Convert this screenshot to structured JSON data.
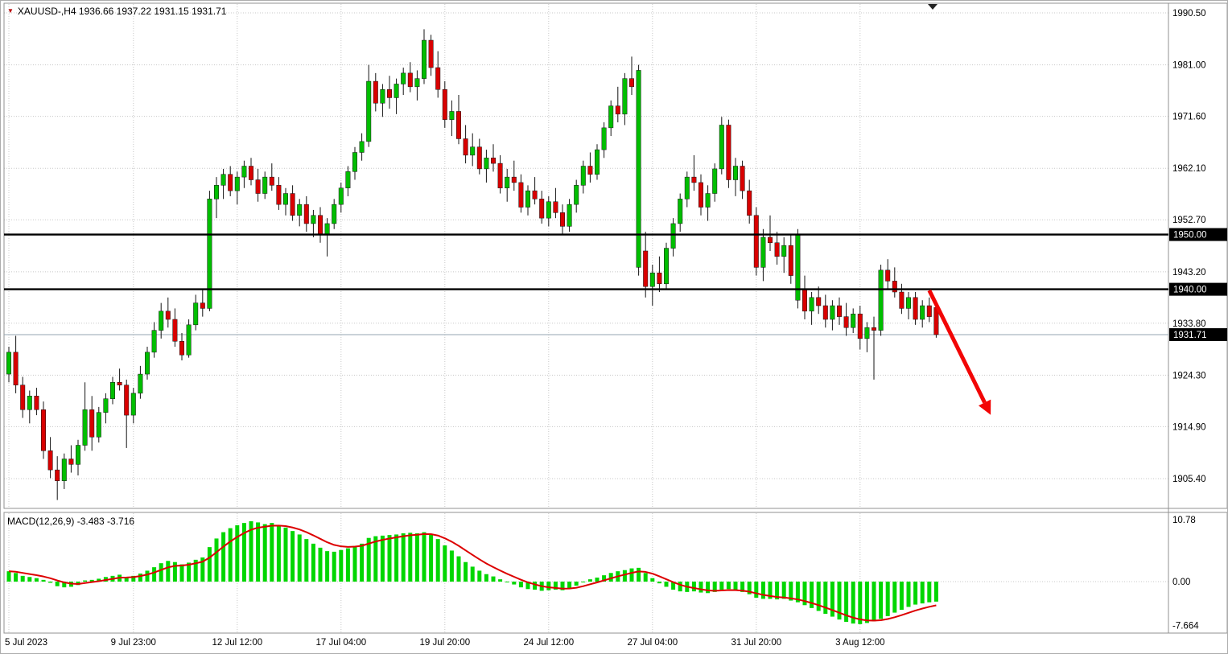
{
  "header": {
    "title": "XAUUSD-,H4 1936.66 1937.22 1931.15 1931.71",
    "marker_icon": "▼"
  },
  "chart_data": {
    "type": "candlestick",
    "symbol": "XAUUSD-",
    "timeframe": "H4",
    "last_ohlc": {
      "open": 1936.66,
      "high": 1937.22,
      "low": 1931.15,
      "close": 1931.71
    },
    "price_axis": {
      "ticks": [
        {
          "value": 1990.5,
          "label": "1990.50"
        },
        {
          "value": 1981.0,
          "label": "1981.00"
        },
        {
          "value": 1971.6,
          "label": "1971.60"
        },
        {
          "value": 1962.1,
          "label": "1962.10"
        },
        {
          "value": 1952.7,
          "label": "1952.70"
        },
        {
          "value": 1943.2,
          "label": "1943.20"
        },
        {
          "value": 1933.8,
          "label": "1933.80"
        },
        {
          "value": 1924.3,
          "label": "1924.30"
        },
        {
          "value": 1914.9,
          "label": "1914.90"
        },
        {
          "value": 1905.4,
          "label": "1905.40"
        }
      ]
    },
    "levels": [
      {
        "value": 1950.0,
        "label": "1950.00",
        "type": "resistance"
      },
      {
        "value": 1940.0,
        "label": "1940.00",
        "type": "support"
      }
    ],
    "current_price": {
      "value": 1931.71,
      "label": "1931.71"
    },
    "x_labels": [
      {
        "text": "5 Jul 2023",
        "index": 0
      },
      {
        "text": "9 Jul 23:00",
        "index": 18
      },
      {
        "text": "12 Jul 12:00",
        "index": 33
      },
      {
        "text": "17 Jul 04:00",
        "index": 48
      },
      {
        "text": "19 Jul 20:00",
        "index": 63
      },
      {
        "text": "24 Jul 12:00",
        "index": 78
      },
      {
        "text": "27 Jul 04:00",
        "index": 93
      },
      {
        "text": "31 Jul 20:00",
        "index": 108
      },
      {
        "text": "3 Aug 12:00",
        "index": 123
      }
    ],
    "candles": [
      [
        1924.5,
        1929.5,
        1923.0,
        1928.5
      ],
      [
        1928.5,
        1931.5,
        1921.0,
        1922.5
      ],
      [
        1922.5,
        1924.0,
        1916.5,
        1918.0
      ],
      [
        1918.0,
        1921.5,
        1915.5,
        1920.5
      ],
      [
        1920.5,
        1922.0,
        1917.0,
        1918.0
      ],
      [
        1918.0,
        1919.5,
        1909.0,
        1910.5
      ],
      [
        1910.5,
        1913.0,
        1905.5,
        1907.0
      ],
      [
        1907.0,
        1909.5,
        1901.5,
        1905.0
      ],
      [
        1905.0,
        1910.0,
        1903.5,
        1909.0
      ],
      [
        1909.0,
        1911.5,
        1906.5,
        1908.0
      ],
      [
        1908.0,
        1912.5,
        1906.0,
        1911.5
      ],
      [
        1911.5,
        1923.0,
        1910.5,
        1918.0
      ],
      [
        1918.0,
        1920.5,
        1910.5,
        1913.0
      ],
      [
        1913.0,
        1918.5,
        1912.0,
        1917.5
      ],
      [
        1917.5,
        1921.0,
        1915.5,
        1920.0
      ],
      [
        1920.0,
        1924.0,
        1919.0,
        1923.0
      ],
      [
        1923.0,
        1925.5,
        1921.5,
        1922.5
      ],
      [
        1922.5,
        1923.5,
        1911.0,
        1917.0
      ],
      [
        1917.0,
        1922.0,
        1915.5,
        1921.0
      ],
      [
        1921.0,
        1926.0,
        1920.0,
        1924.5
      ],
      [
        1924.5,
        1929.5,
        1923.5,
        1928.5
      ],
      [
        1928.5,
        1934.0,
        1927.5,
        1932.5
      ],
      [
        1932.5,
        1937.5,
        1931.0,
        1936.0
      ],
      [
        1936.0,
        1938.5,
        1933.0,
        1934.5
      ],
      [
        1934.5,
        1936.5,
        1929.5,
        1930.5
      ],
      [
        1930.5,
        1932.0,
        1927.0,
        1928.0
      ],
      [
        1928.0,
        1934.5,
        1927.5,
        1933.5
      ],
      [
        1933.5,
        1939.0,
        1932.5,
        1937.5
      ],
      [
        1937.5,
        1940.0,
        1935.0,
        1936.5
      ],
      [
        1936.5,
        1958.0,
        1936.0,
        1956.5
      ],
      [
        1956.5,
        1960.5,
        1953.0,
        1959.0
      ],
      [
        1959.0,
        1962.0,
        1956.5,
        1961.0
      ],
      [
        1961.0,
        1962.5,
        1957.0,
        1958.0
      ],
      [
        1958.0,
        1961.5,
        1955.5,
        1960.5
      ],
      [
        1960.5,
        1963.5,
        1958.5,
        1962.5
      ],
      [
        1962.5,
        1964.0,
        1959.0,
        1960.0
      ],
      [
        1960.0,
        1962.0,
        1956.0,
        1957.5
      ],
      [
        1957.5,
        1961.5,
        1956.5,
        1960.5
      ],
      [
        1960.5,
        1963.0,
        1958.0,
        1959.0
      ],
      [
        1959.0,
        1960.5,
        1954.5,
        1955.5
      ],
      [
        1955.5,
        1958.5,
        1953.5,
        1957.5
      ],
      [
        1957.5,
        1959.0,
        1952.5,
        1953.5
      ],
      [
        1953.5,
        1956.5,
        1951.5,
        1955.5
      ],
      [
        1955.5,
        1957.0,
        1950.5,
        1952.0
      ],
      [
        1952.0,
        1954.5,
        1949.5,
        1953.5
      ],
      [
        1953.5,
        1955.0,
        1948.5,
        1950.0
      ],
      [
        1950.0,
        1953.0,
        1946.0,
        1952.0
      ],
      [
        1952.0,
        1956.5,
        1951.0,
        1955.5
      ],
      [
        1955.5,
        1959.5,
        1954.0,
        1958.5
      ],
      [
        1958.5,
        1962.5,
        1957.0,
        1961.5
      ],
      [
        1961.5,
        1966.0,
        1960.0,
        1965.0
      ],
      [
        1965.0,
        1968.5,
        1963.5,
        1967.0
      ],
      [
        1967.0,
        1981.0,
        1966.0,
        1978.0
      ],
      [
        1978.0,
        1979.5,
        1972.5,
        1974.0
      ],
      [
        1974.0,
        1977.5,
        1971.5,
        1976.5
      ],
      [
        1976.5,
        1979.0,
        1973.0,
        1975.0
      ],
      [
        1975.0,
        1978.5,
        1972.0,
        1977.5
      ],
      [
        1977.5,
        1980.5,
        1975.5,
        1979.5
      ],
      [
        1979.5,
        1981.5,
        1976.0,
        1977.0
      ],
      [
        1977.0,
        1980.0,
        1974.5,
        1978.5
      ],
      [
        1978.5,
        1987.5,
        1977.5,
        1985.5
      ],
      [
        1985.5,
        1986.5,
        1979.0,
        1980.5
      ],
      [
        1980.5,
        1983.5,
        1975.0,
        1976.5
      ],
      [
        1976.5,
        1978.0,
        1969.5,
        1971.0
      ],
      [
        1971.0,
        1974.5,
        1968.0,
        1972.5
      ],
      [
        1972.5,
        1975.5,
        1966.5,
        1967.5
      ],
      [
        1967.5,
        1970.0,
        1963.0,
        1964.5
      ],
      [
        1964.5,
        1968.5,
        1962.5,
        1966.0
      ],
      [
        1966.0,
        1967.5,
        1961.0,
        1962.0
      ],
      [
        1962.0,
        1965.5,
        1959.5,
        1964.0
      ],
      [
        1964.0,
        1966.5,
        1961.5,
        1963.0
      ],
      [
        1963.0,
        1964.5,
        1957.5,
        1958.5
      ],
      [
        1958.5,
        1962.0,
        1956.0,
        1960.5
      ],
      [
        1960.5,
        1963.5,
        1958.0,
        1959.5
      ],
      [
        1959.5,
        1961.0,
        1954.0,
        1955.0
      ],
      [
        1955.0,
        1959.0,
        1953.5,
        1958.0
      ],
      [
        1958.0,
        1960.5,
        1955.5,
        1956.5
      ],
      [
        1956.5,
        1958.0,
        1952.0,
        1953.0
      ],
      [
        1953.0,
        1957.0,
        1951.5,
        1956.0
      ],
      [
        1956.0,
        1958.5,
        1953.0,
        1954.0
      ],
      [
        1954.0,
        1955.5,
        1950.0,
        1951.5
      ],
      [
        1951.5,
        1956.5,
        1950.5,
        1955.5
      ],
      [
        1955.5,
        1960.0,
        1954.0,
        1959.0
      ],
      [
        1959.0,
        1963.5,
        1957.5,
        1962.5
      ],
      [
        1962.5,
        1965.0,
        1959.5,
        1961.0
      ],
      [
        1961.0,
        1966.5,
        1960.0,
        1965.5
      ],
      [
        1965.5,
        1970.5,
        1964.0,
        1969.5
      ],
      [
        1969.5,
        1974.5,
        1968.0,
        1973.5
      ],
      [
        1973.5,
        1977.0,
        1970.5,
        1972.0
      ],
      [
        1972.0,
        1979.5,
        1970.0,
        1978.5
      ],
      [
        1978.5,
        1982.5,
        1975.5,
        1977.0
      ],
      [
        1944.0,
        1981.0,
        1942.5,
        1980.0
      ],
      [
        1947.0,
        1950.5,
        1938.5,
        1940.5
      ],
      [
        1940.5,
        1944.5,
        1937.0,
        1943.0
      ],
      [
        1943.0,
        1946.0,
        1939.5,
        1941.0
      ],
      [
        1941.0,
        1948.5,
        1940.0,
        1947.5
      ],
      [
        1947.5,
        1953.0,
        1946.0,
        1952.0
      ],
      [
        1952.0,
        1957.5,
        1950.5,
        1956.5
      ],
      [
        1956.5,
        1961.5,
        1955.0,
        1960.5
      ],
      [
        1960.5,
        1964.5,
        1958.0,
        1959.5
      ],
      [
        1959.5,
        1961.0,
        1953.5,
        1955.0
      ],
      [
        1955.0,
        1959.0,
        1952.5,
        1957.5
      ],
      [
        1957.5,
        1963.0,
        1956.0,
        1962.0
      ],
      [
        1962.0,
        1971.5,
        1961.0,
        1970.0
      ],
      [
        1970.0,
        1971.0,
        1958.5,
        1960.0
      ],
      [
        1960.0,
        1964.0,
        1957.0,
        1962.5
      ],
      [
        1962.5,
        1963.5,
        1956.5,
        1958.0
      ],
      [
        1958.0,
        1960.0,
        1952.0,
        1953.5
      ],
      [
        1953.5,
        1955.0,
        1942.5,
        1944.0
      ],
      [
        1944.0,
        1951.0,
        1941.5,
        1949.5
      ],
      [
        1949.5,
        1953.5,
        1947.0,
        1948.5
      ],
      [
        1948.5,
        1950.5,
        1944.5,
        1946.0
      ],
      [
        1946.0,
        1949.5,
        1943.0,
        1948.0
      ],
      [
        1948.0,
        1950.0,
        1941.0,
        1942.5
      ],
      [
        1938.0,
        1951.0,
        1936.5,
        1950.0
      ],
      [
        1940.0,
        1942.5,
        1934.5,
        1936.0
      ],
      [
        1936.0,
        1939.5,
        1933.5,
        1938.5
      ],
      [
        1938.5,
        1940.5,
        1935.5,
        1937.0
      ],
      [
        1937.0,
        1939.0,
        1933.0,
        1934.5
      ],
      [
        1934.5,
        1938.0,
        1932.5,
        1937.0
      ],
      [
        1937.0,
        1938.5,
        1933.5,
        1935.0
      ],
      [
        1935.0,
        1937.5,
        1931.5,
        1933.0
      ],
      [
        1933.0,
        1936.5,
        1932.0,
        1935.5
      ],
      [
        1935.5,
        1937.0,
        1929.0,
        1931.0
      ],
      [
        1931.0,
        1934.0,
        1928.5,
        1933.0
      ],
      [
        1933.0,
        1935.0,
        1923.5,
        1932.5
      ],
      [
        1932.5,
        1944.5,
        1931.5,
        1943.5
      ],
      [
        1943.5,
        1945.5,
        1940.0,
        1941.5
      ],
      [
        1941.5,
        1944.0,
        1938.5,
        1939.5
      ],
      [
        1939.5,
        1941.0,
        1935.5,
        1936.5
      ],
      [
        1936.5,
        1939.5,
        1934.5,
        1938.5
      ],
      [
        1938.5,
        1939.5,
        1933.5,
        1934.5
      ],
      [
        1934.5,
        1938.0,
        1933.0,
        1937.0
      ],
      [
        1937.0,
        1938.5,
        1934.0,
        1935.0
      ],
      [
        1936.66,
        1937.22,
        1931.15,
        1931.71
      ]
    ],
    "indicator": {
      "name": "MACD",
      "fast": 12,
      "slow": 26,
      "smoothing": 9,
      "label": "MACD(12,26,9) -3.483 -3.716",
      "main_value": -3.483,
      "signal_value": -3.716,
      "axis_ticks": [
        {
          "value": 10.78,
          "label": "10.78"
        },
        {
          "value": 0.0,
          "label": "0.00"
        },
        {
          "value": -7.664,
          "label": "-7.664"
        }
      ],
      "main": [
        1.8,
        1.5,
        1.0,
        0.8,
        0.6,
        0.3,
        -0.2,
        -0.8,
        -1.0,
        -0.9,
        -0.6,
        0.2,
        0.3,
        0.5,
        0.8,
        1.0,
        1.2,
        0.8,
        1.0,
        1.4,
        1.9,
        2.5,
        3.2,
        3.6,
        3.4,
        3.0,
        3.3,
        3.8,
        4.2,
        6.0,
        7.5,
        8.6,
        9.3,
        9.8,
        10.2,
        10.5,
        10.3,
        10.0,
        10.2,
        9.8,
        9.4,
        8.8,
        8.2,
        7.4,
        6.6,
        5.9,
        5.3,
        5.2,
        5.5,
        5.8,
        6.2,
        6.6,
        7.6,
        7.9,
        8.0,
        8.1,
        8.2,
        8.4,
        8.5,
        8.4,
        8.6,
        8.2,
        7.4,
        6.3,
        5.4,
        4.4,
        3.4,
        2.6,
        1.9,
        1.3,
        0.9,
        0.4,
        -0.1,
        -0.5,
        -1.0,
        -1.3,
        -1.4,
        -1.6,
        -1.5,
        -1.4,
        -1.5,
        -1.2,
        -0.7,
        -0.1,
        0.4,
        0.7,
        1.1,
        1.5,
        1.8,
        2.0,
        2.3,
        2.4,
        1.5,
        0.6,
        -0.3,
        -0.9,
        -1.4,
        -1.7,
        -1.8,
        -1.7,
        -1.9,
        -2.0,
        -1.8,
        -1.4,
        -1.3,
        -1.5,
        -1.8,
        -2.2,
        -2.8,
        -3.0,
        -3.0,
        -3.1,
        -3.0,
        -3.3,
        -3.6,
        -4.1,
        -4.6,
        -5.1,
        -5.6,
        -6.1,
        -6.6,
        -7.0,
        -7.3,
        -7.4,
        -7.2,
        -6.9,
        -6.5,
        -6.0,
        -5.4,
        -4.9,
        -4.4,
        -4.0,
        -3.8,
        -3.6,
        -3.483
      ]
    },
    "annotations": {
      "arrow": {
        "from": {
          "index": 133,
          "price": 1939.8
        },
        "to": {
          "index": 141,
          "price": 1919.3
        }
      }
    },
    "colors": {
      "up": "#00be00",
      "down": "#d80000",
      "wick": "#141414",
      "grid": "#c8c8c8",
      "border": "#909090",
      "level": "#000000",
      "current_price_line": "#94a6b0",
      "histogram": "#00d600",
      "signal": "#dd0000",
      "arrow": "#f20505",
      "axis_text": "#000000",
      "box_bg": "#000000",
      "box_text": "#ffffff",
      "shift_marker": "#222222"
    }
  }
}
